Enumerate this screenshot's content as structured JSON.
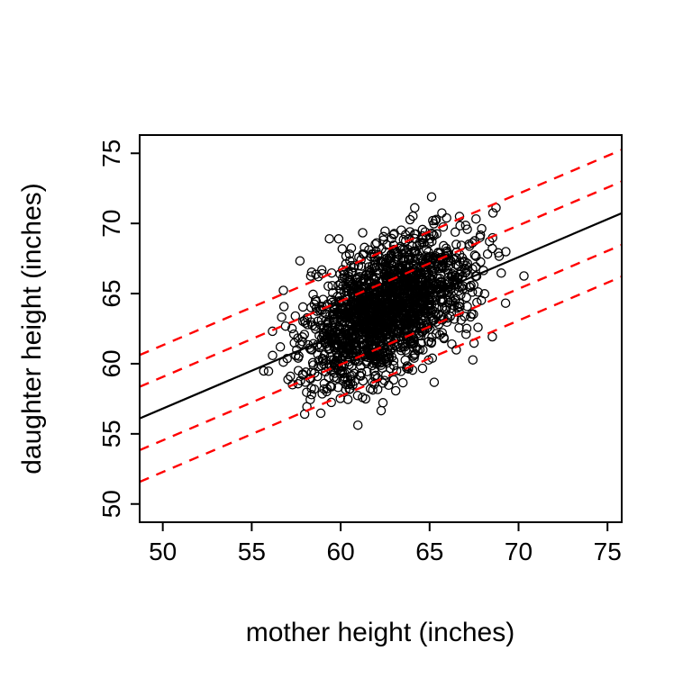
{
  "figure": {
    "kind": "R-base-graphics scatterplot",
    "background": "#ffffff",
    "foreground": "#000000",
    "accent_color": "#ff0000"
  },
  "chart_data": {
    "type": "scatter",
    "title": "",
    "xlabel": "mother height (inches)",
    "ylabel": "daughter height (inches)",
    "x_ticks": [
      50,
      55,
      60,
      65,
      70,
      75
    ],
    "y_ticks": [
      50,
      55,
      60,
      65,
      70,
      75
    ],
    "xlim": [
      48.7,
      75.8
    ],
    "ylim": [
      48.7,
      76.3
    ],
    "grid": false,
    "legend": null,
    "points": {
      "n": 1800,
      "marker": "open-circle",
      "color": "#000000",
      "mean_x": 62.5,
      "sd_x": 2.3,
      "mean_y": 63.9,
      "sd_y": 2.6,
      "correlation": 0.49,
      "seed": 42,
      "description": "mother/daughter height pairs, dense cloud centered near (62.5, 64) spanning roughly x 55-71, y 55-73"
    },
    "regression_line": {
      "intercept": 29.8,
      "slope": 0.54,
      "color": "#000000",
      "style": "solid"
    },
    "bands": [
      {
        "label": "+2 residual sd",
        "offset": 4.52,
        "color": "#ff0000",
        "style": "dashed"
      },
      {
        "label": "+1 residual sd",
        "offset": 2.26,
        "color": "#ff0000",
        "style": "dashed"
      },
      {
        "label": "-1 residual sd",
        "offset": -2.26,
        "color": "#ff0000",
        "style": "dashed"
      },
      {
        "label": "-2 residual sd",
        "offset": -4.52,
        "color": "#ff0000",
        "style": "dashed"
      }
    ]
  }
}
